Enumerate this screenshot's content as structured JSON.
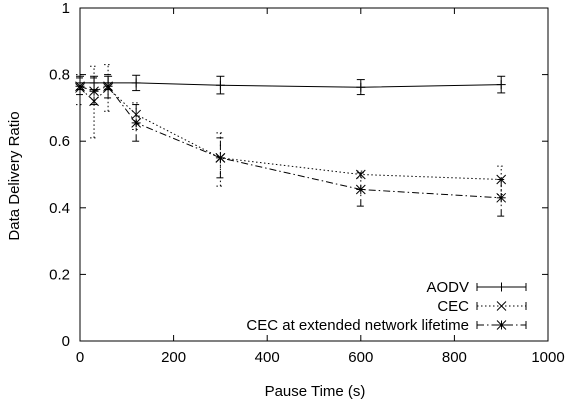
{
  "chart_data": {
    "type": "line",
    "title": "",
    "xlabel": "Pause Time (s)",
    "ylabel": "Data Delivery Ratio",
    "xlim": [
      0,
      1000
    ],
    "ylim": [
      0,
      1
    ],
    "xticks": [
      0,
      200,
      400,
      600,
      800,
      1000
    ],
    "xtick_labels": [
      "0",
      "200",
      "400",
      "600",
      "800",
      "1000"
    ],
    "yticks": [
      0,
      0.2,
      0.4,
      0.6,
      0.8,
      1
    ],
    "ytick_labels": [
      "0",
      "0.2",
      "0.4",
      "0.6",
      "0.8",
      "1"
    ],
    "grid": false,
    "legend_position": "bottom-right",
    "series": [
      {
        "name": "AODV",
        "line_style": "solid",
        "marker": "plus",
        "x": [
          0,
          30,
          60,
          120,
          300,
          600,
          900
        ],
        "y": [
          0.775,
          0.775,
          0.775,
          0.775,
          0.768,
          0.762,
          0.77
        ],
        "err_low": [
          0.755,
          0.755,
          0.755,
          0.752,
          0.742,
          0.74,
          0.745
        ],
        "err_high": [
          0.795,
          0.795,
          0.795,
          0.798,
          0.795,
          0.785,
          0.795
        ]
      },
      {
        "name": "CEC",
        "line_style": "dotted",
        "marker": "cross",
        "x": [
          0,
          30,
          60,
          120,
          300,
          600,
          900
        ],
        "y": [
          0.76,
          0.72,
          0.76,
          0.68,
          0.55,
          0.5,
          0.485
        ],
        "err_low": [
          0.71,
          0.61,
          0.69,
          0.635,
          0.465,
          0.49,
          0.44
        ],
        "err_high": [
          0.8,
          0.825,
          0.83,
          0.715,
          0.625,
          0.51,
          0.525
        ]
      },
      {
        "name": "CEC at extended network lifetime",
        "line_style": "dash-dot",
        "marker": "star",
        "x": [
          0,
          30,
          60,
          120,
          300,
          600,
          900
        ],
        "y": [
          0.765,
          0.75,
          0.765,
          0.655,
          0.55,
          0.455,
          0.43
        ],
        "err_low": [
          0.74,
          0.71,
          0.73,
          0.6,
          0.49,
          0.405,
          0.375
        ],
        "err_high": [
          0.79,
          0.79,
          0.8,
          0.71,
          0.61,
          0.505,
          0.485
        ]
      }
    ]
  }
}
